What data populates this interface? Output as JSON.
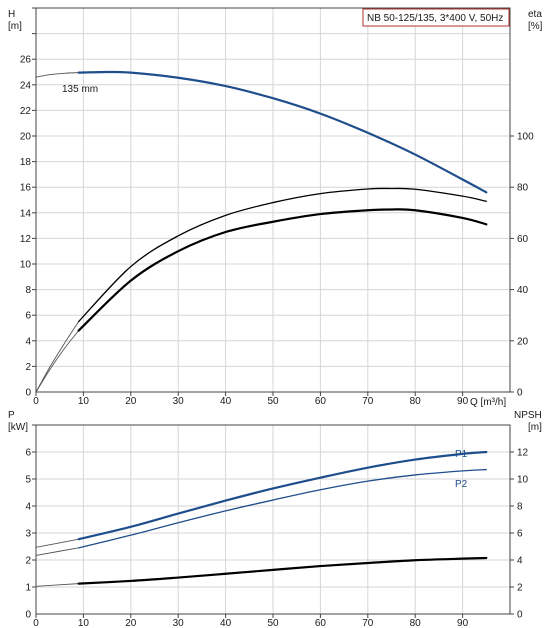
{
  "chart_data": [
    {
      "panel": "top",
      "type": "line",
      "title": "NB 50-125/135, 3*400 V, 50Hz",
      "x_label": "Q [m³/h]",
      "x_ticks": [
        "0",
        "10",
        "20",
        "30",
        "40",
        "50",
        "60",
        "70",
        "80",
        "90"
      ],
      "xlim": [
        0,
        100
      ],
      "y_left_label_1": "H",
      "y_left_label_2": "[m]",
      "y_left_ticks": [
        "0",
        "2",
        "4",
        "6",
        "8",
        "10",
        "12",
        "14",
        "16",
        "18",
        "20",
        "22",
        "24",
        "26"
      ],
      "ylim_left": [
        0,
        30
      ],
      "y_right_label_1": "eta",
      "y_right_label_2": "[%]",
      "y_right_ticks": [
        "0",
        "20",
        "40",
        "60",
        "80",
        "100"
      ],
      "ylim_right": [
        0,
        150
      ],
      "grid": true,
      "colors": {
        "head": "#1f4e8c",
        "eta": "#000000",
        "extension": "#555555"
      },
      "series": [
        {
          "name": "135 mm",
          "axis": "left",
          "style": "head",
          "x": [
            9,
            15,
            20,
            30,
            40,
            50,
            60,
            70,
            80,
            90,
            95
          ],
          "y": [
            24.95,
            25.0,
            24.95,
            24.55,
            23.9,
            22.95,
            21.75,
            20.25,
            18.55,
            16.6,
            15.6
          ]
        },
        {
          "name": "eta",
          "axis": "right",
          "style": "eta",
          "x": [
            9,
            20,
            30,
            40,
            50,
            60,
            70,
            75,
            80,
            90,
            95
          ],
          "y": [
            24,
            43.5,
            55,
            62.5,
            66.5,
            69.5,
            71,
            71.3,
            71,
            68,
            65.5
          ]
        },
        {
          "name": "eta-upper",
          "axis": "right",
          "style": "eta",
          "x": [
            9,
            20,
            30,
            40,
            50,
            60,
            70,
            75,
            80,
            90,
            95
          ],
          "y": [
            27.5,
            49,
            61,
            69,
            74,
            77.5,
            79.3,
            79.5,
            79.2,
            76.5,
            74.5
          ]
        }
      ],
      "extensions": [
        {
          "axis": "left",
          "x": [
            0,
            3,
            6,
            9
          ],
          "y": [
            24.6,
            24.8,
            24.9,
            24.95
          ]
        },
        {
          "axis": "right",
          "x": [
            0,
            3,
            6,
            9
          ],
          "y": [
            0,
            9,
            17,
            24
          ]
        },
        {
          "axis": "right",
          "x": [
            0,
            3,
            6,
            9
          ],
          "y": [
            0,
            10,
            19,
            27.5
          ]
        }
      ],
      "annotations": [
        {
          "text": "135 mm",
          "x": 3,
          "y": 25.1
        }
      ]
    },
    {
      "panel": "bottom",
      "type": "line",
      "x_ticks": [
        "0",
        "10",
        "20",
        "30",
        "40",
        "50",
        "60",
        "70",
        "80",
        "90"
      ],
      "xlim": [
        0,
        100
      ],
      "y_left_label_1": "P",
      "y_left_label_2": "[kW]",
      "y_left_ticks": [
        "0",
        "1",
        "2",
        "3",
        "4",
        "5",
        "6"
      ],
      "ylim_left": [
        0,
        7
      ],
      "y_right_label_1": "NPSH",
      "y_right_label_2": "[m]",
      "y_right_ticks": [
        "0",
        "2",
        "4",
        "6",
        "8",
        "10",
        "12"
      ],
      "ylim_right": [
        0,
        14
      ],
      "grid": true,
      "colors": {
        "p1": "#1f4e8c",
        "p2": "#1f4e8c",
        "npsh": "#000000",
        "extension": "#555555"
      },
      "series": [
        {
          "name": "P1",
          "axis": "left",
          "style": "p1",
          "x": [
            9,
            20,
            30,
            40,
            50,
            60,
            70,
            80,
            90,
            95
          ],
          "y": [
            2.77,
            3.23,
            3.72,
            4.2,
            4.65,
            5.05,
            5.42,
            5.72,
            5.93,
            6.0
          ]
        },
        {
          "name": "P2",
          "axis": "left",
          "style": "p2",
          "x": [
            9,
            20,
            30,
            40,
            50,
            60,
            70,
            80,
            90,
            95
          ],
          "y": [
            2.45,
            2.92,
            3.38,
            3.82,
            4.22,
            4.6,
            4.92,
            5.15,
            5.3,
            5.35
          ]
        },
        {
          "name": "NPSH",
          "axis": "right",
          "style": "npsh",
          "x": [
            9,
            20,
            30,
            40,
            50,
            60,
            70,
            80,
            90,
            95
          ],
          "y": [
            2.25,
            2.45,
            2.7,
            2.98,
            3.27,
            3.55,
            3.78,
            3.98,
            4.1,
            4.15
          ]
        }
      ],
      "extensions": [
        {
          "axis": "left",
          "x": [
            0,
            9
          ],
          "y": [
            2.47,
            2.77
          ]
        },
        {
          "axis": "left",
          "x": [
            0,
            9
          ],
          "y": [
            2.17,
            2.45
          ]
        },
        {
          "axis": "right",
          "x": [
            0,
            9
          ],
          "y": [
            2.05,
            2.25
          ]
        }
      ],
      "annotations": [
        {
          "text": "P1",
          "x": 92,
          "y": 6.25
        },
        {
          "text": "P2",
          "x": 92,
          "y": 5.15
        }
      ]
    }
  ]
}
